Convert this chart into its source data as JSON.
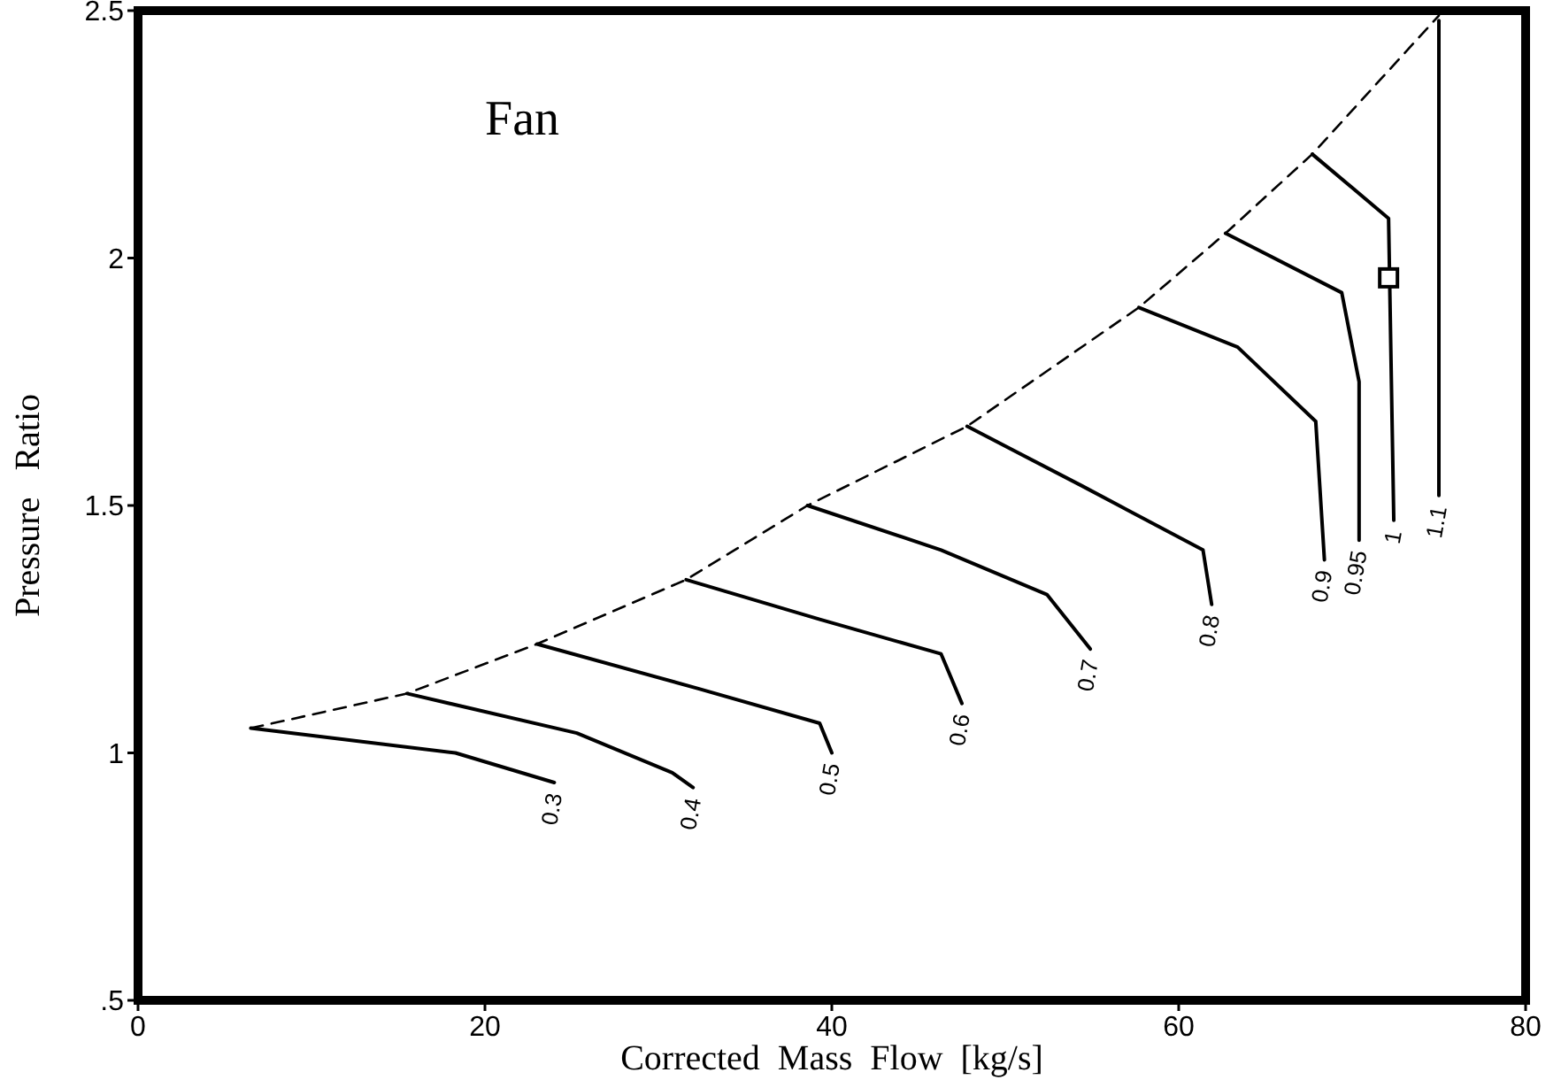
{
  "chart_data": {
    "type": "line",
    "title": "Fan",
    "xlabel": "Corrected  Mass  Flow  [kg/s]",
    "ylabel": "Pressure   Ratio",
    "xlim": [
      0,
      80
    ],
    "xticks": [
      0,
      20,
      40,
      60,
      80
    ],
    "ylim": [
      0.5,
      2.5
    ],
    "yticks": [
      {
        "value": 0.5,
        "label": ".5"
      },
      1,
      1.5,
      2,
      2.5
    ],
    "grid": false,
    "marker": "none",
    "line_style": "solid",
    "series": [
      {
        "name": "0.3",
        "color": "#000000",
        "x": [
          6.5,
          18.3,
          24
        ],
        "values": [
          1.05,
          1.0,
          0.94
        ]
      },
      {
        "name": "0.4",
        "color": "#000000",
        "x": [
          15.5,
          25.3,
          30.8,
          32
        ],
        "values": [
          1.12,
          1.04,
          0.96,
          0.93
        ]
      },
      {
        "name": "0.5",
        "color": "#000000",
        "x": [
          23,
          32.3,
          39.3,
          40
        ],
        "values": [
          1.22,
          1.13,
          1.06,
          1.0
        ]
      },
      {
        "name": "0.6",
        "color": "#000000",
        "x": [
          31.6,
          39.3,
          46.3,
          47.5
        ],
        "values": [
          1.35,
          1.27,
          1.2,
          1.1
        ]
      },
      {
        "name": "0.7",
        "color": "#000000",
        "x": [
          38.6,
          46.3,
          52.4,
          54.9
        ],
        "values": [
          1.5,
          1.41,
          1.32,
          1.21
        ]
      },
      {
        "name": "0.8",
        "color": "#000000",
        "x": [
          47.8,
          54.4,
          61.4,
          61.9
        ],
        "values": [
          1.66,
          1.54,
          1.41,
          1.3
        ]
      },
      {
        "name": "0.9",
        "color": "#000000",
        "x": [
          57.7,
          63.4,
          67.9,
          68.4
        ],
        "values": [
          1.9,
          1.82,
          1.67,
          1.39
        ]
      },
      {
        "name": "0.95",
        "color": "#000000",
        "x": [
          62.7,
          69.4,
          70.4,
          70.4
        ],
        "values": [
          2.05,
          1.93,
          1.75,
          1.43
        ]
      },
      {
        "name": "1",
        "color": "#000000",
        "x": [
          67.7,
          72.1,
          72.4
        ],
        "values": [
          2.21,
          2.08,
          1.47
        ]
      },
      {
        "name": "1.1",
        "color": "#000000",
        "x": [
          75,
          75
        ],
        "values": [
          2.48,
          1.52
        ]
      },
      {
        "color": "#000000",
        "line_style": "dashed",
        "x": [
          6.5,
          15.5,
          23,
          31.6,
          38.6,
          47.8,
          57.7,
          62.7,
          67.7,
          75
        ],
        "values": [
          1.05,
          1.12,
          1.22,
          1.35,
          1.5,
          1.66,
          1.9,
          2.05,
          2.21,
          2.49
        ]
      },
      {
        "type": "scatter",
        "color": "#000000",
        "marker": "square",
        "x": [
          72.1
        ],
        "values": [
          1.96
        ]
      }
    ]
  }
}
